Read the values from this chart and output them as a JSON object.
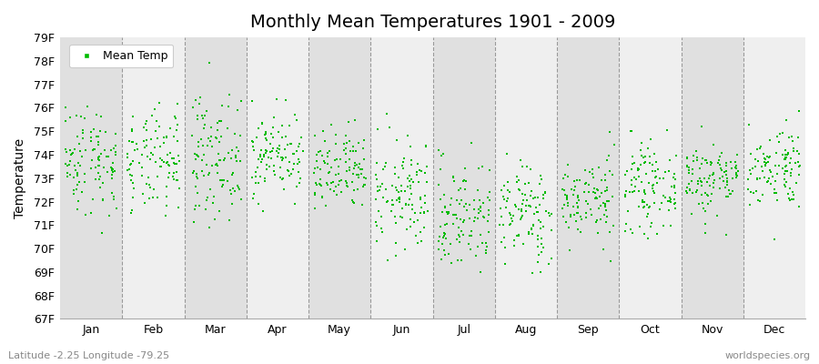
{
  "title": "Monthly Mean Temperatures 1901 - 2009",
  "ylabel": "Temperature",
  "ylim": [
    67,
    79
  ],
  "yticks": [
    67,
    68,
    69,
    70,
    71,
    72,
    73,
    74,
    75,
    76,
    77,
    78,
    79
  ],
  "ytick_labels": [
    "67F",
    "68F",
    "69F",
    "70F",
    "71F",
    "72F",
    "73F",
    "74F",
    "75F",
    "76F",
    "77F",
    "78F",
    "79F"
  ],
  "months": [
    "Jan",
    "Feb",
    "Mar",
    "Apr",
    "May",
    "Jun",
    "Jul",
    "Aug",
    "Sep",
    "Oct",
    "Nov",
    "Dec"
  ],
  "dot_color": "#00BB00",
  "band_color_dark": "#e0e0e0",
  "band_color_light": "#efefef",
  "title_fontsize": 14,
  "axis_label_fontsize": 10,
  "tick_fontsize": 9,
  "legend_label": "Mean Temp",
  "subtitle_left": "Latitude -2.25 Longitude -79.25",
  "subtitle_right": "worldspecies.org",
  "monthly_means": [
    73.8,
    73.6,
    73.9,
    74.0,
    73.2,
    72.2,
    71.4,
    71.5,
    72.1,
    72.6,
    73.0,
    73.5
  ],
  "monthly_stds": [
    1.2,
    1.1,
    1.3,
    0.9,
    0.9,
    1.2,
    1.2,
    1.1,
    0.9,
    0.9,
    0.8,
    0.9
  ],
  "n_years": 109,
  "seed": 42
}
